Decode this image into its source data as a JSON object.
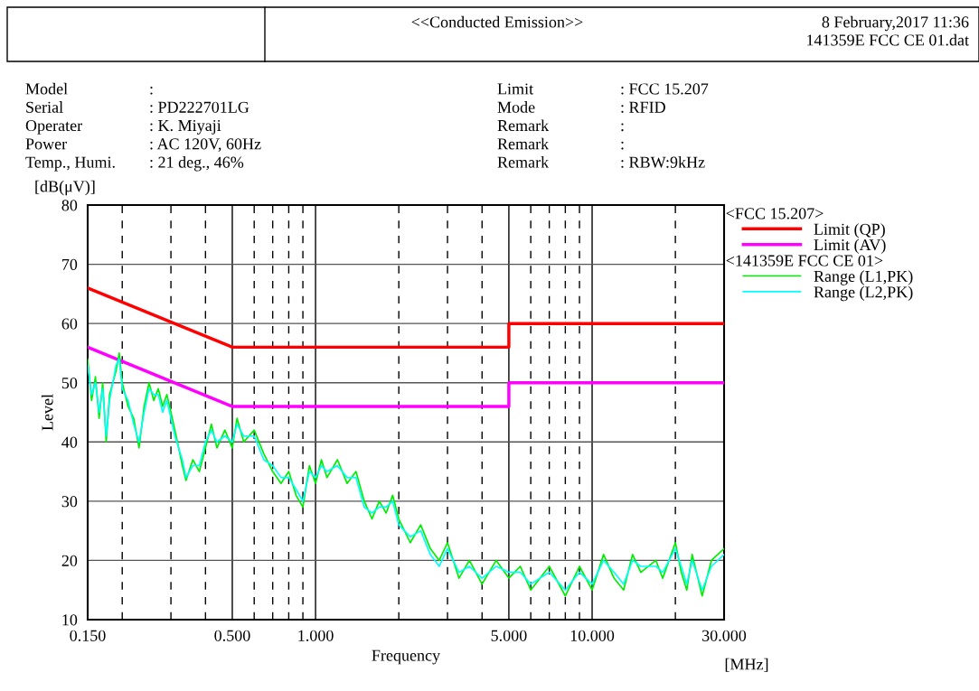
{
  "chart_data": {
    "type": "line",
    "xlabel": "Frequency",
    "ylabel": "Level",
    "legend_title": "<FCC 15.207>",
    "log": "x",
    "xlim": [
      0.15,
      30
    ],
    "ylim": [
      10,
      80
    ],
    "xticks": [
      {
        "value": 0.15,
        "label": "0.150"
      },
      {
        "value": 0.2,
        "label": null
      },
      {
        "value": 0.3,
        "label": null
      },
      {
        "value": 0.4,
        "label": null
      },
      {
        "value": 0.5,
        "label": "0.500"
      },
      {
        "value": 0.6,
        "label": null
      },
      {
        "value": 0.7,
        "label": null
      },
      {
        "value": 0.8,
        "label": null
      },
      {
        "value": 0.9,
        "label": null
      },
      {
        "value": 1,
        "label": "1.000"
      },
      {
        "value": 2,
        "label": null
      },
      {
        "value": 3,
        "label": null
      },
      {
        "value": 4,
        "label": null
      },
      {
        "value": 5,
        "label": "5.000"
      },
      {
        "value": 6,
        "label": null
      },
      {
        "value": 7,
        "label": null
      },
      {
        "value": 8,
        "label": null
      },
      {
        "value": 9,
        "label": null
      },
      {
        "value": 10,
        "label": "10.000"
      },
      {
        "value": 20,
        "label": null
      },
      {
        "value": 30,
        "label": "30.000"
      }
    ],
    "yticks": [
      10,
      20,
      30,
      40,
      50,
      60,
      70,
      80
    ],
    "grid": true,
    "legend": "right",
    "line_style": "solid",
    "series": [
      {
        "name": "Limit (QP)",
        "color": "#ff0000",
        "x": [
          0.15,
          0.5,
          5,
          5,
          30
        ],
        "values": [
          66,
          56,
          56,
          60,
          60
        ]
      },
      {
        "name": "Limit (AV)",
        "color": "#ff00ff",
        "x": [
          0.15,
          0.5,
          5,
          5,
          30
        ],
        "values": [
          56,
          46,
          46,
          50,
          50
        ]
      },
      {
        "name": "Range (L1,PK)",
        "color": "#00ee00",
        "x": [
          0.15,
          0.155,
          0.16,
          0.165,
          0.17,
          0.175,
          0.18,
          0.19,
          0.195,
          0.2,
          0.21,
          0.22,
          0.23,
          0.24,
          0.25,
          0.26,
          0.27,
          0.28,
          0.29,
          0.3,
          0.31,
          0.33,
          0.34,
          0.36,
          0.38,
          0.4,
          0.42,
          0.44,
          0.47,
          0.5,
          0.52,
          0.55,
          0.6,
          0.65,
          0.7,
          0.75,
          0.8,
          0.85,
          0.9,
          0.95,
          1.0,
          1.05,
          1.1,
          1.2,
          1.3,
          1.4,
          1.5,
          1.6,
          1.7,
          1.8,
          1.9,
          2.0,
          2.2,
          2.4,
          2.6,
          2.8,
          3.0,
          3.3,
          3.6,
          4.0,
          4.5,
          5.0,
          5.5,
          6.0,
          7,
          8,
          9,
          10,
          11,
          12,
          13,
          14,
          15,
          17,
          18,
          20,
          21,
          22,
          23,
          25,
          27,
          30
        ],
        "values": [
          54,
          47,
          51,
          44,
          50,
          40,
          48,
          52,
          55,
          50,
          46,
          44,
          39,
          46,
          50,
          47,
          49,
          46,
          48,
          45,
          42,
          36,
          33.5,
          37,
          35,
          39,
          43,
          39,
          42,
          39,
          44,
          40,
          42,
          38,
          35,
          33,
          35,
          31,
          29,
          36,
          33,
          37,
          34,
          37,
          33,
          35,
          30,
          27,
          30,
          28,
          31,
          27,
          23,
          26,
          22,
          20,
          23,
          17,
          20,
          16,
          20,
          17,
          19,
          15,
          19,
          14,
          19,
          15,
          21,
          17,
          15,
          21,
          18,
          20,
          17,
          23,
          18,
          15,
          21,
          14,
          20,
          22
        ]
      },
      {
        "name": "Range (L2,PK)",
        "color": "#00ffff",
        "x": [
          0.15,
          0.155,
          0.16,
          0.165,
          0.17,
          0.175,
          0.18,
          0.19,
          0.195,
          0.2,
          0.21,
          0.22,
          0.23,
          0.24,
          0.25,
          0.26,
          0.27,
          0.28,
          0.29,
          0.3,
          0.31,
          0.33,
          0.34,
          0.36,
          0.38,
          0.4,
          0.42,
          0.44,
          0.47,
          0.5,
          0.52,
          0.55,
          0.6,
          0.65,
          0.7,
          0.75,
          0.8,
          0.85,
          0.9,
          0.95,
          1.0,
          1.05,
          1.1,
          1.2,
          1.3,
          1.4,
          1.5,
          1.6,
          1.7,
          1.8,
          1.9,
          2.0,
          2.2,
          2.4,
          2.6,
          2.8,
          3.0,
          3.3,
          3.6,
          4.0,
          4.5,
          5.0,
          5.5,
          6.0,
          7,
          8,
          9,
          10,
          11,
          12,
          13,
          14,
          15,
          17,
          18,
          20,
          21,
          22,
          23,
          25,
          27,
          30
        ],
        "values": [
          53,
          48,
          50,
          45,
          49,
          41,
          47,
          53,
          54,
          49,
          47,
          43,
          40,
          45,
          49,
          48,
          48,
          45,
          47,
          44,
          41,
          37,
          34,
          36,
          36,
          40,
          42,
          40,
          41,
          40,
          43,
          41,
          41,
          37,
          36,
          34,
          34,
          32,
          30,
          35,
          34,
          36,
          35,
          36,
          34,
          34,
          29,
          28,
          29,
          29,
          30,
          26,
          24,
          25,
          21,
          19,
          22,
          18,
          19,
          17,
          19,
          18,
          18,
          16,
          18,
          15,
          18,
          16,
          20,
          18,
          16,
          20,
          19,
          19,
          18,
          22,
          19,
          16,
          20,
          15,
          19,
          21
        ]
      }
    ],
    "annotations": [
      "<<Conducted Emission>>",
      "8 February,2017 11:36",
      "141359E FCC CE 01.dat",
      "Model",
      "Serial",
      "Operater",
      "Power",
      "Temp., Humi.",
      ":",
      ": PD222701LG",
      ": K. Miyaji",
      ": AC 120V, 60Hz",
      ": 21 deg., 46%",
      "Limit",
      "Mode",
      "Remark",
      "Remark",
      "Remark",
      ": FCC 15.207",
      ": RFID",
      ":",
      ":",
      ": RBW:9kHz",
      "[dB(μV)]",
      "[MHz]",
      "<141359E FCC CE 01>"
    ]
  }
}
